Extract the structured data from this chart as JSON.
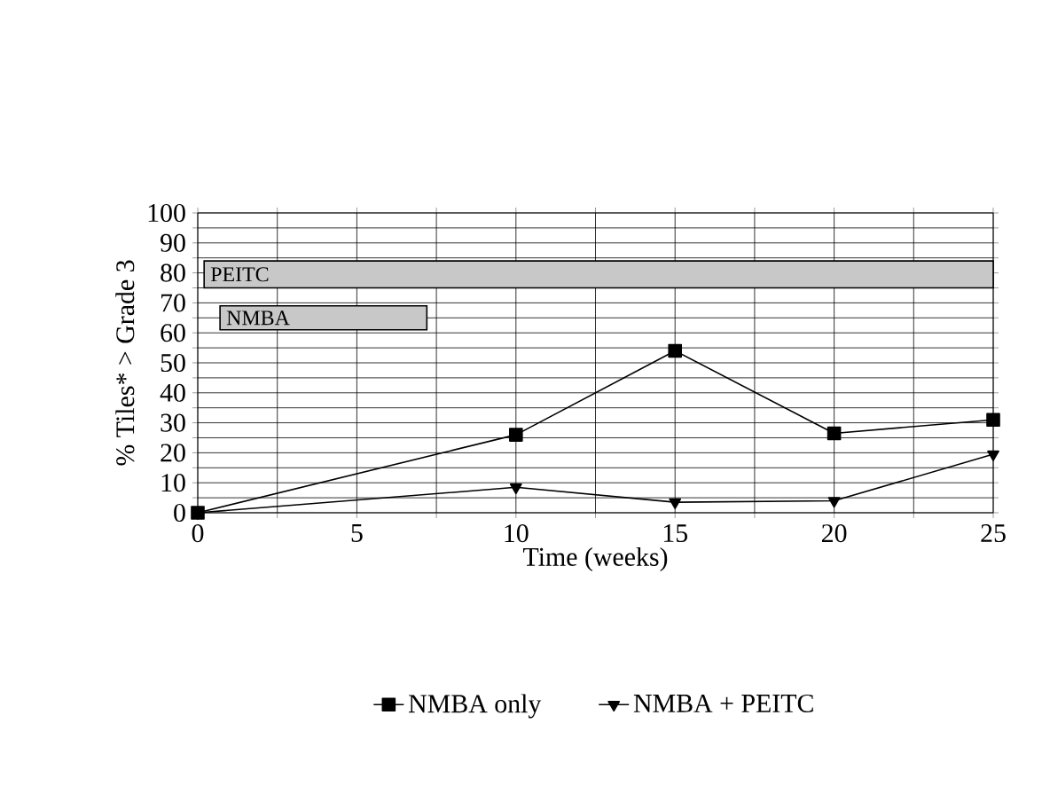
{
  "chart_data": {
    "type": "line",
    "xlabel": "Time (weeks)",
    "ylabel": "% Tiles* > Grade 3",
    "x": [
      0,
      10,
      15,
      20,
      25
    ],
    "series": [
      {
        "name": "NMBA only",
        "color": "#000000",
        "marker": "square",
        "values": [
          0,
          26,
          54,
          26.5,
          31
        ]
      },
      {
        "name": "NMBA + PEITC",
        "color": "#000000",
        "marker": "triangle",
        "values": [
          0,
          8.5,
          3.5,
          4,
          19.5
        ]
      }
    ],
    "xlim": [
      0,
      25
    ],
    "ylim": [
      0,
      100
    ],
    "xticks": [
      0,
      {
        "value": 2.5,
        "label": null
      },
      5,
      {
        "value": 7.5,
        "label": null
      },
      10,
      {
        "value": 12.5,
        "label": null
      },
      15,
      {
        "value": 17.5,
        "label": null
      },
      20,
      {
        "value": 22.5,
        "label": null
      },
      25
    ],
    "yticks": [
      0,
      {
        "value": 5,
        "label": null
      },
      10,
      {
        "value": 15,
        "label": null
      },
      20,
      {
        "value": 25,
        "label": null
      },
      30,
      {
        "value": 35,
        "label": null
      },
      40,
      {
        "value": 45,
        "label": null
      },
      50,
      {
        "value": 55,
        "label": null
      },
      60,
      {
        "value": 65,
        "label": null
      },
      70,
      {
        "value": 75,
        "label": null
      },
      80,
      {
        "value": 85,
        "label": null
      },
      90,
      {
        "value": 95,
        "label": null
      },
      100
    ],
    "bands": [
      {
        "axis": "x",
        "from": 0.2,
        "to": 25,
        "label": "PEITC",
        "color": "#c8c8c8"
      },
      {
        "axis": "x",
        "from": 0.7,
        "to": 7.2,
        "label": "NMBA",
        "color": "#c8c8c8"
      }
    ],
    "grid": true,
    "legend": "bottom",
    "line_style": "solid"
  }
}
